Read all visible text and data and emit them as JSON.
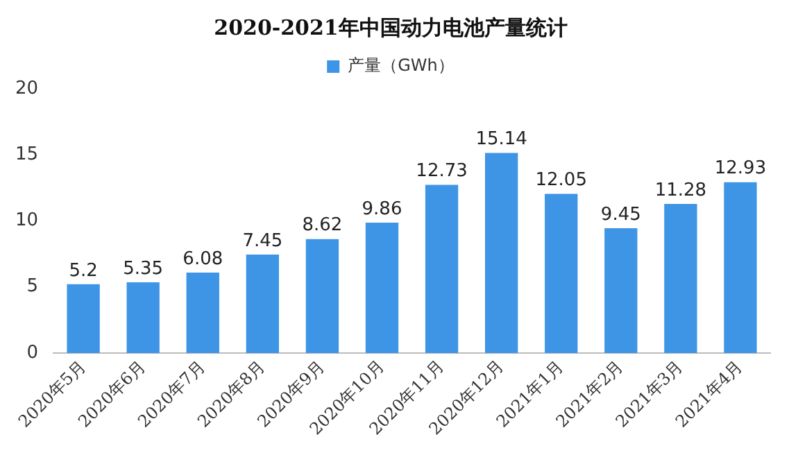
{
  "chart_data": {
    "type": "bar",
    "title": "2020-2021年中国动力电池产量统计",
    "categories": [
      "2020年5月",
      "2020年6月",
      "2020年7月",
      "2020年8月",
      "2020年9月",
      "2020年10月",
      "2020年11月",
      "2020年12月",
      "2021年1月",
      "2021年2月",
      "2021年3月",
      "2021年4月"
    ],
    "series": [
      {
        "name": "产量（GWh）",
        "color": "#3e95e6",
        "values": [
          5.2,
          5.35,
          6.08,
          7.45,
          8.62,
          9.86,
          12.73,
          15.14,
          12.05,
          9.45,
          11.28,
          12.93
        ]
      }
    ],
    "ylim": [
      0,
      20
    ],
    "yticks": [
      0,
      5,
      10,
      15,
      20
    ],
    "grid": false,
    "legend": "top",
    "data_labels": true
  }
}
